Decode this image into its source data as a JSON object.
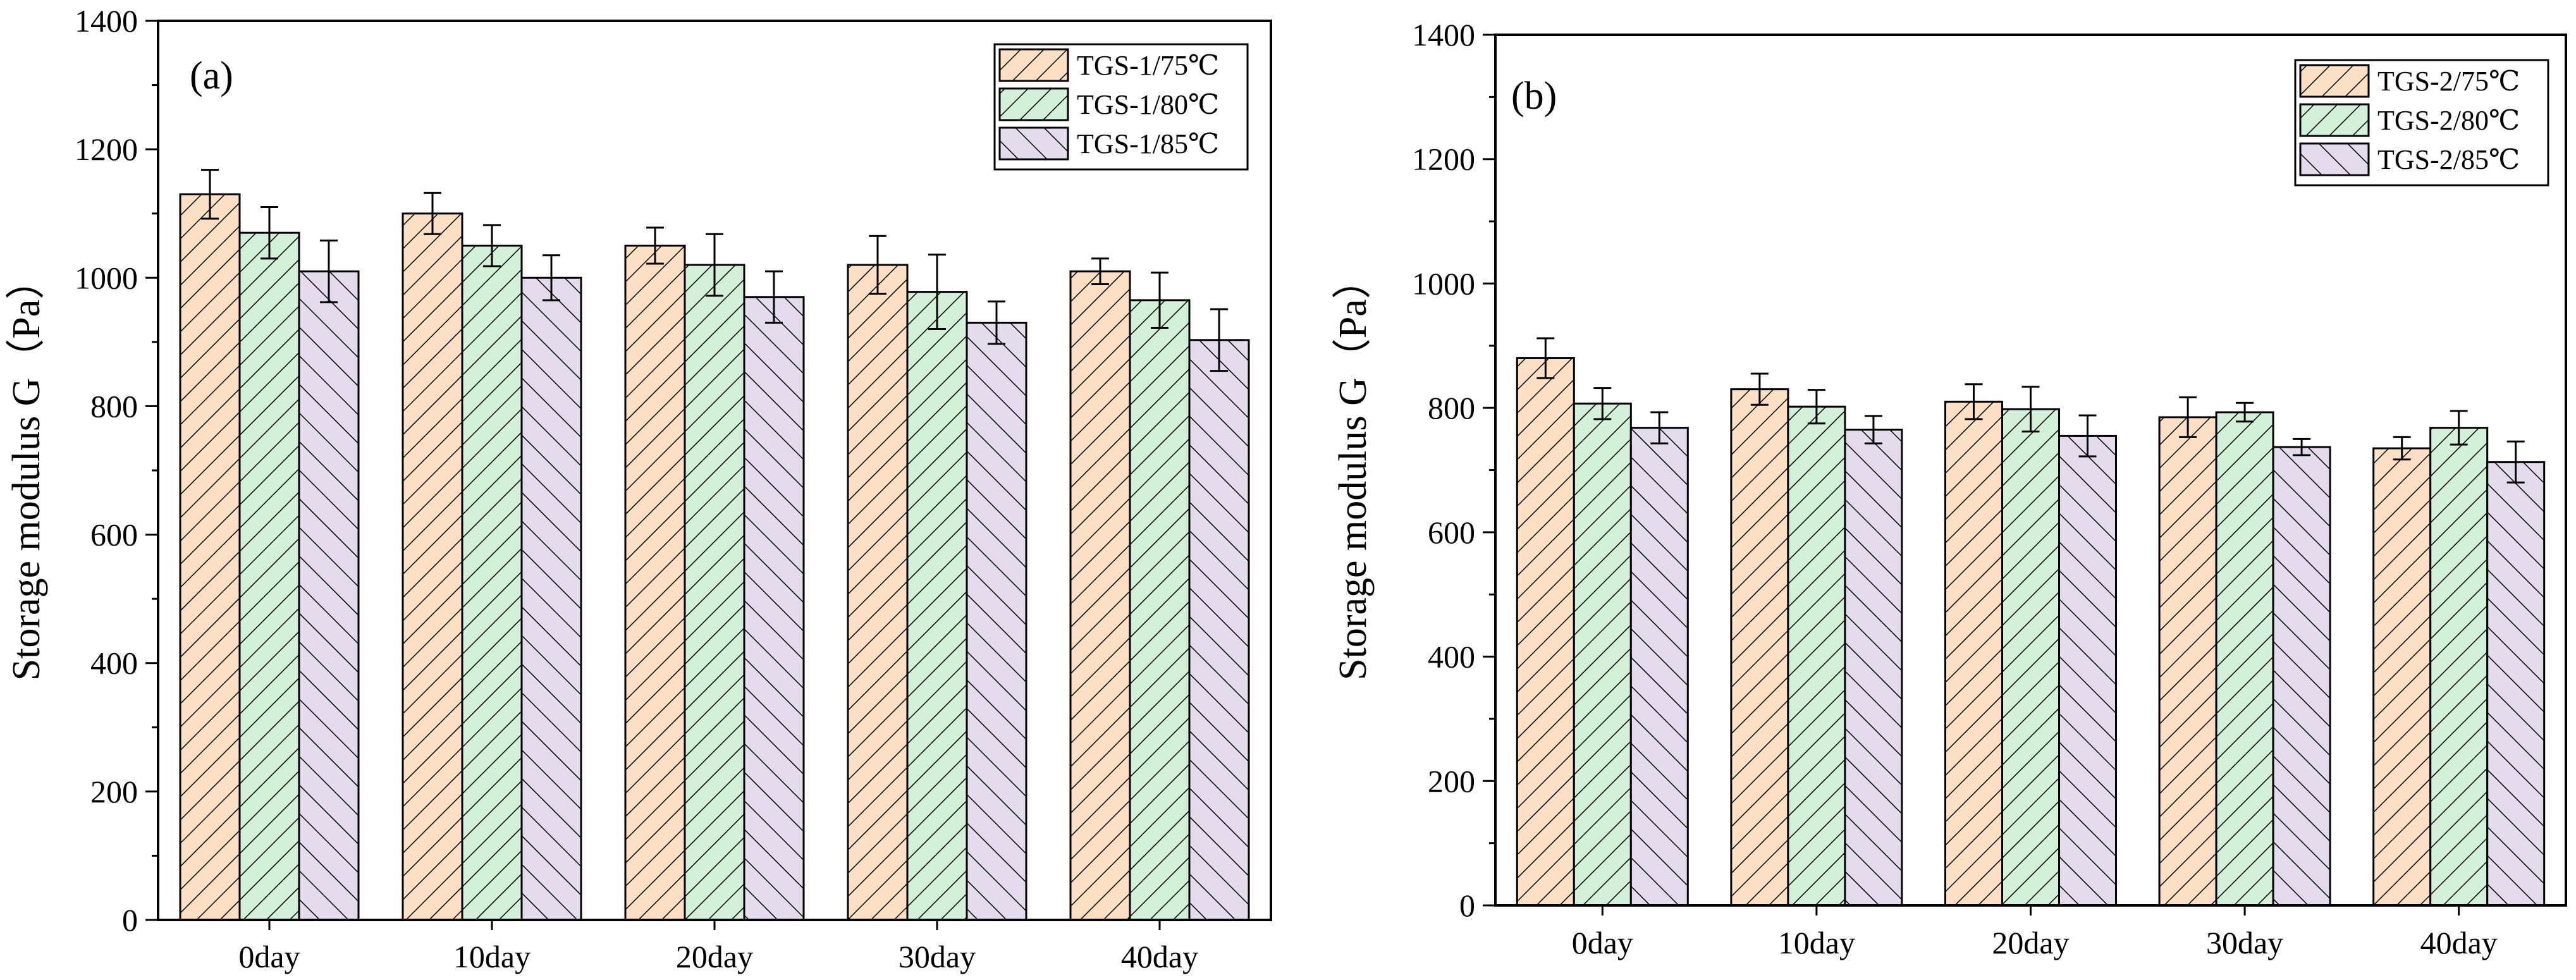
{
  "chart_data": [
    {
      "type": "bar",
      "panel_label": "(a)",
      "title": "",
      "xlabel": "",
      "ylabel": "Storage modulus G（Pa）",
      "ylim": [
        0,
        1400
      ],
      "yticks": [
        0,
        200,
        400,
        600,
        800,
        1000,
        1200,
        1400
      ],
      "categories": [
        "0day",
        "10day",
        "20day",
        "30day",
        "40day"
      ],
      "legend_position": "top-right",
      "series": [
        {
          "name": "TGS-1/75℃",
          "values": [
            1130,
            1100,
            1050,
            1020,
            1010
          ],
          "errors": [
            38,
            32,
            28,
            45,
            20
          ],
          "color": "#fde0c4",
          "hatch": "forward"
        },
        {
          "name": "TGS-1/80℃",
          "values": [
            1070,
            1050,
            1020,
            978,
            965
          ],
          "errors": [
            40,
            32,
            48,
            58,
            43
          ],
          "color": "#d2f1d8",
          "hatch": "forward"
        },
        {
          "name": "TGS-1/85℃",
          "values": [
            1010,
            1000,
            970,
            930,
            903
          ],
          "errors": [
            48,
            35,
            40,
            33,
            48
          ],
          "color": "#e4dcec",
          "hatch": "back"
        }
      ]
    },
    {
      "type": "bar",
      "panel_label": "(b)",
      "title": "",
      "xlabel": "",
      "ylabel": "Storage modulus G（Pa）",
      "ylim": [
        0,
        1400
      ],
      "yticks": [
        0,
        200,
        400,
        600,
        800,
        1000,
        1200,
        1400
      ],
      "categories": [
        "0day",
        "10day",
        "20day",
        "30day",
        "40day"
      ],
      "legend_position": "top-right",
      "series": [
        {
          "name": "TGS-2/75℃",
          "values": [
            880,
            830,
            810,
            785,
            735
          ],
          "errors": [
            32,
            25,
            28,
            32,
            18
          ],
          "color": "#fde0c4",
          "hatch": "forward"
        },
        {
          "name": "TGS-2/80℃",
          "values": [
            807,
            802,
            798,
            793,
            768
          ],
          "errors": [
            25,
            27,
            36,
            15,
            27
          ],
          "color": "#d2f1d8",
          "hatch": "forward"
        },
        {
          "name": "TGS-2/85℃",
          "values": [
            768,
            765,
            755,
            737,
            713
          ],
          "errors": [
            25,
            22,
            33,
            13,
            33
          ],
          "color": "#e4dcec",
          "hatch": "back"
        }
      ]
    }
  ]
}
